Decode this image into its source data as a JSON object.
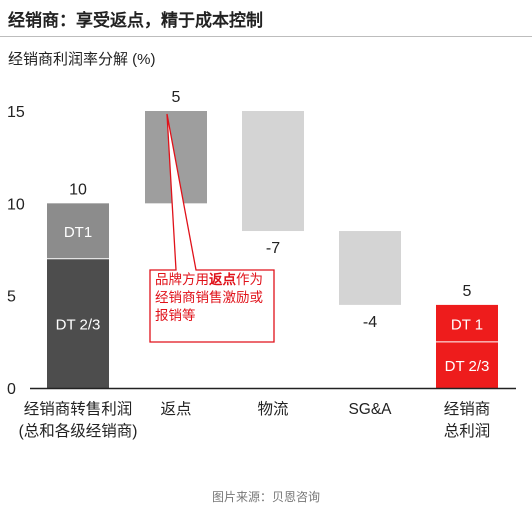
{
  "header": {
    "title": "经销商：享受返点，精于成本控制"
  },
  "chart_data": {
    "type": "bar",
    "subtype": "waterfall",
    "ylabel": "经销商利润率分解 (%)",
    "ylim": [
      0,
      15
    ],
    "yticks": [
      0,
      5,
      10,
      15
    ],
    "grid": false,
    "categories": [
      [
        "经销商转售利润",
        "(总和各级经销商)"
      ],
      [
        "返点"
      ],
      [
        "物流"
      ],
      [
        "SG&A"
      ],
      [
        "经销商",
        "总利润"
      ]
    ],
    "bars": [
      {
        "kind": "total",
        "start": 0,
        "end": 10,
        "label": "10",
        "label_pos": "top",
        "segments": [
          {
            "name": "DT 2/3",
            "from": 0,
            "to": 7,
            "color": "#4d4d4d"
          },
          {
            "name": "DT1",
            "from": 7,
            "to": 10,
            "color": "#8c8c8c"
          }
        ]
      },
      {
        "kind": "delta",
        "value": 5,
        "start": 10,
        "end": 15,
        "label": "5",
        "label_pos": "top",
        "color": "#9e9e9e"
      },
      {
        "kind": "delta",
        "value": -7,
        "start": 15,
        "end": 8.5,
        "label": "-7",
        "label_pos": "bottom",
        "color": "#d4d4d4"
      },
      {
        "kind": "delta",
        "value": -4,
        "start": 8.5,
        "end": 4.5,
        "label": "-4",
        "label_pos": "bottom",
        "color": "#d4d4d4"
      },
      {
        "kind": "total",
        "start": 0,
        "end": 4.5,
        "label": "5",
        "label_pos": "top",
        "segments": [
          {
            "name": "DT 2/3",
            "from": 0,
            "to": 2.5,
            "color": "#ee1c1c"
          },
          {
            "name": "DT 1",
            "from": 2.5,
            "to": 4.5,
            "color": "#ee1c1c"
          }
        ]
      }
    ],
    "annotation": {
      "pre": "品牌方用",
      "bold": "返点",
      "post": "作为经销商销售激励或报销等",
      "color": "#e0121a",
      "points_to": 1
    }
  },
  "source": "图片来源：贝恩咨询"
}
